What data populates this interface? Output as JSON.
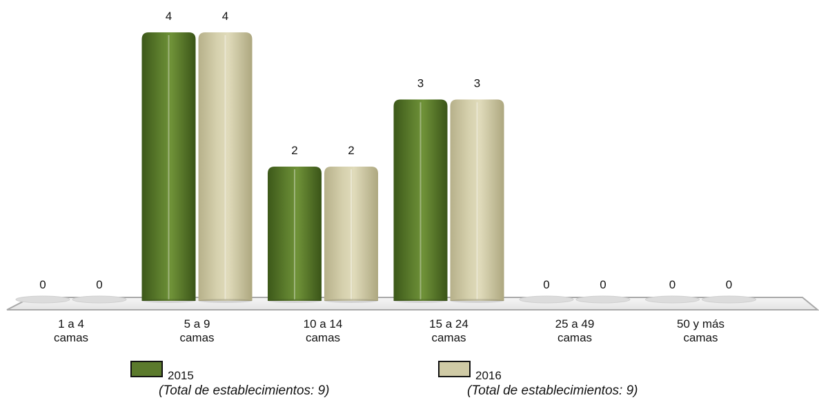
{
  "chart_data": {
    "type": "bar",
    "title": "",
    "xlabel": "",
    "ylabel": "",
    "ylim": [
      0,
      4
    ],
    "grid": false,
    "legend_position": "bottom",
    "categories": [
      [
        "1 a 4",
        "camas"
      ],
      [
        "5 a 9",
        "camas"
      ],
      [
        "10 a 14",
        "camas"
      ],
      [
        "15 a 24",
        "camas"
      ],
      [
        "25 a 49",
        "camas"
      ],
      [
        "50 y más",
        "camas"
      ]
    ],
    "series": [
      {
        "name": "2015",
        "note": "(Total de establecimientos: 9)",
        "values": [
          0,
          4,
          2,
          3,
          0,
          0
        ],
        "color": "#5b7a2c"
      },
      {
        "name": "2016",
        "note": "(Total de establecimientos: 9)",
        "values": [
          0,
          4,
          2,
          3,
          0,
          0
        ],
        "color": "#cfcaa5"
      }
    ]
  }
}
